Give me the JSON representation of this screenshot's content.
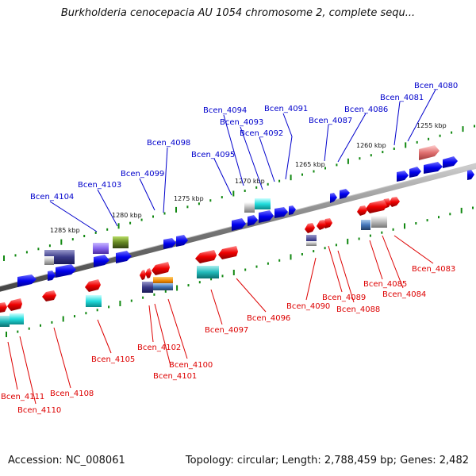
{
  "title": "Burkholderia cenocepacia AU 1054 chromosome 2, complete sequ...",
  "footer": {
    "accession": "Accession: NC_008061",
    "topology": "Topology: circular; Length: 2,788,459 bp; Genes: 2,482"
  },
  "scale_labels": [
    "1255 kbp",
    "1260 kbp",
    "1265 kbp",
    "1270 kbp",
    "1275 kbp",
    "1280 kbp",
    "1285 kbp"
  ],
  "genes_forward": [
    "Bcen_4080",
    "Bcen_4081",
    "Bcen_4086",
    "Bcen_4087",
    "Bcen_4091",
    "Bcen_4092",
    "Bcen_4093",
    "Bcen_4094",
    "Bcen_4095",
    "Bcen_4098",
    "Bcen_4099",
    "Bcen_4103",
    "Bcen_4104"
  ],
  "genes_reverse": [
    "Bcen_4083",
    "Bcen_4084",
    "Bcen_4085",
    "Bcen_4088",
    "Bcen_4089",
    "Bcen_4090",
    "Bcen_4096",
    "Bcen_4097",
    "Bcen_4100",
    "Bcen_4101",
    "Bcen_4102",
    "Bcen_4105",
    "Bcen_4108",
    "Bcen_4110",
    "Bcen_4111"
  ],
  "colors": {
    "forward_label": "#0000cc",
    "reverse_label": "#dd0000",
    "backbone": "#888888",
    "tick": "#118811"
  }
}
